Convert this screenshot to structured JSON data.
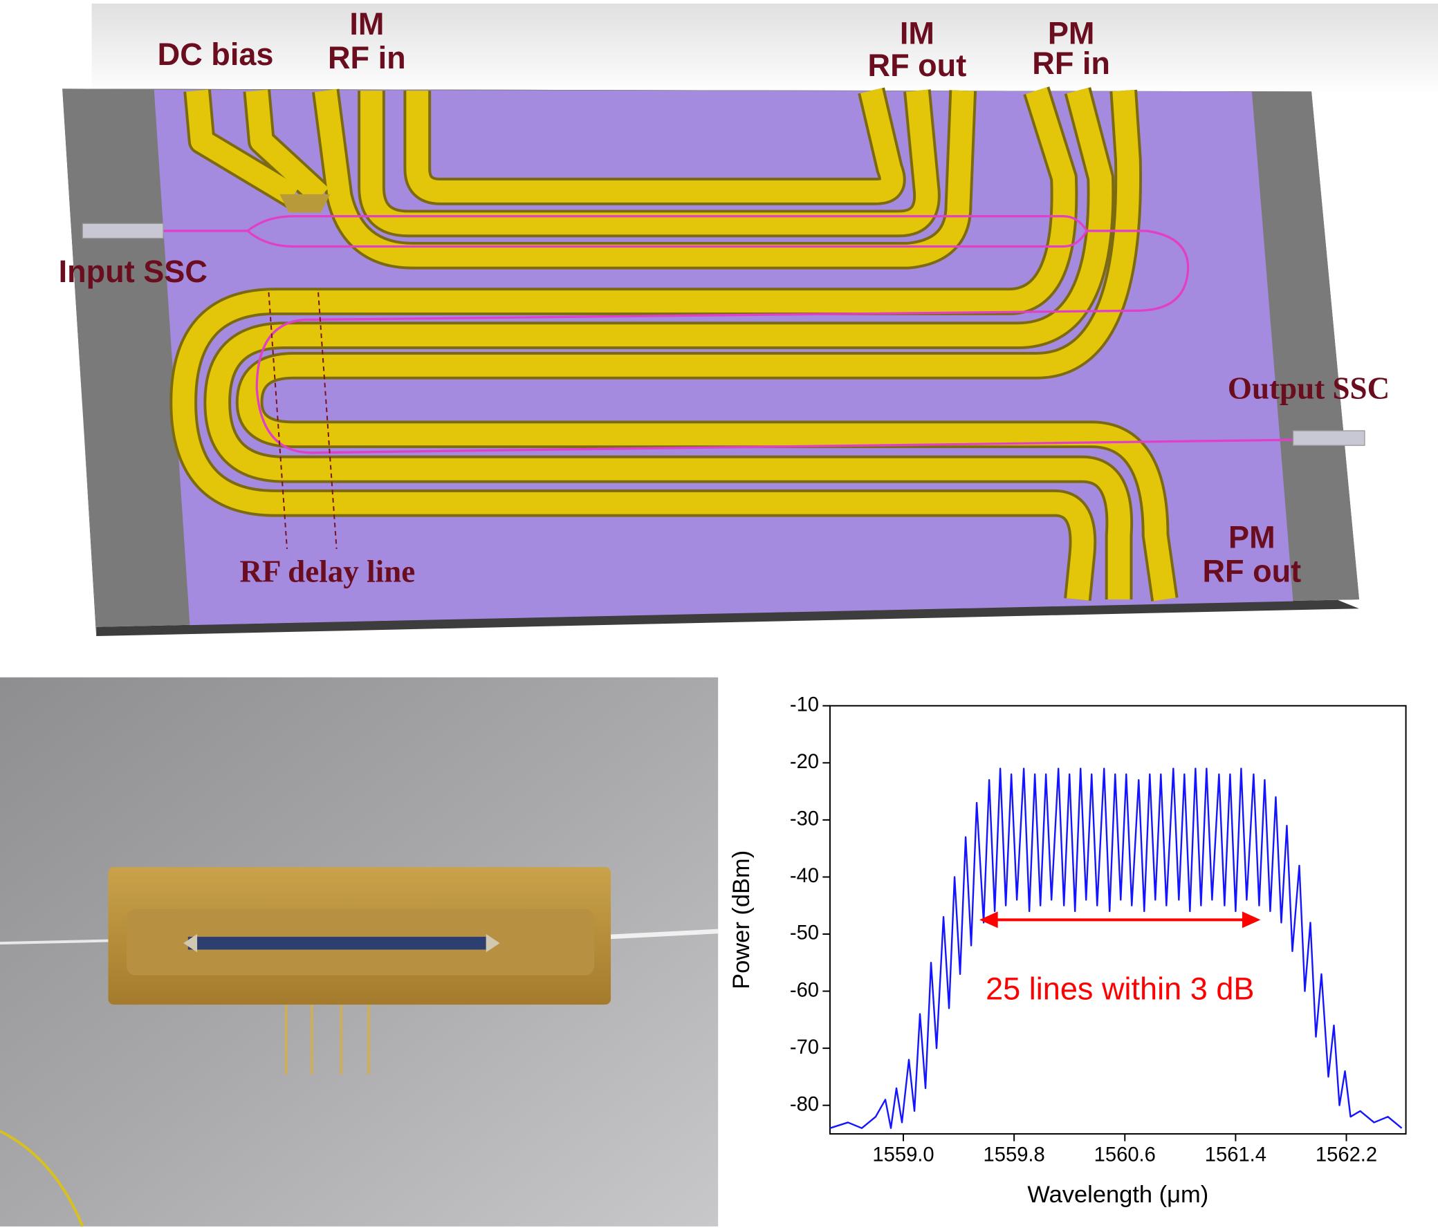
{
  "diagram": {
    "labels": [
      [
        "DC bias"
      ],
      [
        "IM",
        "RF in"
      ],
      [
        "IM",
        "RF out"
      ],
      [
        "PM",
        "RF in"
      ],
      [
        "Input SSC"
      ],
      [
        "Output SSC"
      ],
      [
        "RF delay line"
      ],
      [
        "PM",
        "RF out"
      ]
    ]
  },
  "chart_data": {
    "type": "line",
    "x_label": "Wavelength (μm)",
    "y_label": "Power (dBm)",
    "color": "#1414ff",
    "x": [
      1558.47,
      1558.6,
      1558.7,
      1558.8,
      1558.87,
      1558.91,
      1558.95,
      1558.99,
      1559.04,
      1559.08,
      1559.12,
      1559.16,
      1559.2,
      1559.24,
      1559.29,
      1559.33,
      1559.37,
      1559.41,
      1559.45,
      1559.49,
      1559.53,
      1559.58,
      1559.62,
      1559.66,
      1559.7,
      1559.74,
      1559.78,
      1559.82,
      1559.87,
      1559.91,
      1559.95,
      1559.99,
      1560.03,
      1560.07,
      1560.12,
      1560.16,
      1560.2,
      1560.24,
      1560.28,
      1560.32,
      1560.36,
      1560.4,
      1560.45,
      1560.49,
      1560.53,
      1560.57,
      1560.61,
      1560.65,
      1560.7,
      1560.74,
      1560.78,
      1560.82,
      1560.86,
      1560.9,
      1560.95,
      1560.99,
      1561.03,
      1561.07,
      1561.11,
      1561.15,
      1561.19,
      1561.23,
      1561.28,
      1561.32,
      1561.36,
      1561.4,
      1561.44,
      1561.48,
      1561.53,
      1561.57,
      1561.61,
      1561.65,
      1561.69,
      1561.73,
      1561.77,
      1561.81,
      1561.86,
      1561.9,
      1561.94,
      1561.98,
      1562.02,
      1562.07,
      1562.11,
      1562.15,
      1562.19,
      1562.23,
      1562.3,
      1562.4,
      1562.5,
      1562.6
    ],
    "values": [
      -84,
      -83,
      -84,
      -82,
      -79,
      -84,
      -77,
      -83,
      -72,
      -81,
      -64,
      -77,
      -55,
      -70,
      -47,
      -63,
      -40,
      -57,
      -33,
      -52,
      -27,
      -48,
      -23,
      -46,
      -21,
      -45,
      -22,
      -44,
      -21,
      -46,
      -22,
      -45,
      -22,
      -44,
      -21,
      -45,
      -22,
      -46,
      -21,
      -44,
      -22,
      -45,
      -21,
      -46,
      -22,
      -44,
      -22,
      -45,
      -23,
      -46,
      -22,
      -44,
      -22,
      -45,
      -21,
      -44,
      -22,
      -46,
      -21,
      -45,
      -21,
      -44,
      -22,
      -45,
      -22,
      -46,
      -21,
      -44,
      -22,
      -45,
      -23,
      -46,
      -26,
      -48,
      -31,
      -53,
      -38,
      -60,
      -48,
      -68,
      -57,
      -75,
      -66,
      -80,
      -74,
      -82,
      -81,
      -83,
      -82,
      -84
    ],
    "xlim": [
      1558.47,
      1562.63
    ],
    "xticks": [
      {
        "value": 1559,
        "label": "1559.0"
      },
      1559.8,
      1560.6,
      1561.4,
      1562.2
    ],
    "ylim": [
      -85,
      -10
    ],
    "yticks": [
      -10,
      -20,
      -30,
      -40,
      -50,
      -60,
      -70,
      -80
    ],
    "annotation": {
      "text": "25 lines within 3 dB",
      "color": "#ff0000",
      "arrow_x": [
        1559.55,
        1561.58
      ],
      "arrow_y": -47.5
    }
  }
}
